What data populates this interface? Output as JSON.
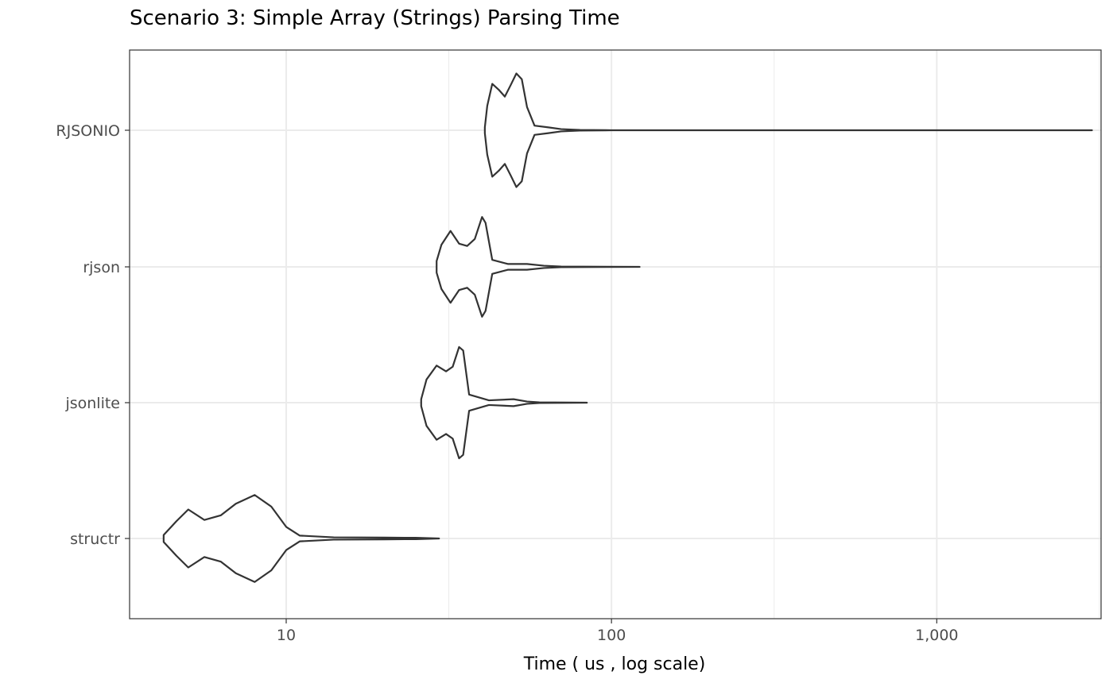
{
  "chart_data": {
    "type": "violin",
    "title": "Scenario 3: Simple Array (Strings) Parsing Time",
    "xlabel": "Time ( us , log scale)",
    "ylabel": "",
    "x_scale": "log10",
    "xlim": [
      3.3,
      3200
    ],
    "x_ticks": [
      10,
      100,
      1000
    ],
    "x_tick_labels": [
      "10",
      "100",
      "1,000"
    ],
    "grid": true,
    "categories": [
      "RJSONIO",
      "rjson",
      "jsonlite",
      "structr"
    ],
    "series": [
      {
        "category": "RJSONIO",
        "min": 40.8,
        "max": 3000,
        "density_profile": [
          [
            40.8,
            0.05
          ],
          [
            41.5,
            0.42
          ],
          [
            43.0,
            0.8
          ],
          [
            45.0,
            0.7
          ],
          [
            47.0,
            0.58
          ],
          [
            49.0,
            0.78
          ],
          [
            51.0,
            0.98
          ],
          [
            53.0,
            0.88
          ],
          [
            55.0,
            0.4
          ],
          [
            58.0,
            0.08
          ],
          [
            64.0,
            0.05
          ],
          [
            70.0,
            0.02
          ],
          [
            80.0,
            0.005
          ],
          [
            100.0,
            0.001
          ],
          [
            3000.0,
            0.0005
          ]
        ]
      },
      {
        "category": "rjson",
        "min": 29.0,
        "max": 122,
        "density_profile": [
          [
            29.0,
            0.1
          ],
          [
            30.0,
            0.38
          ],
          [
            32.0,
            0.62
          ],
          [
            34.0,
            0.4
          ],
          [
            36.0,
            0.36
          ],
          [
            38.0,
            0.48
          ],
          [
            40.0,
            0.86
          ],
          [
            41.0,
            0.76
          ],
          [
            43.0,
            0.12
          ],
          [
            48.0,
            0.05
          ],
          [
            55.0,
            0.05
          ],
          [
            62.0,
            0.02
          ],
          [
            70.0,
            0.005
          ],
          [
            122.0,
            0.001
          ]
        ]
      },
      {
        "category": "jsonlite",
        "min": 26.0,
        "max": 84,
        "density_profile": [
          [
            26.0,
            0.06
          ],
          [
            27.0,
            0.4
          ],
          [
            29.0,
            0.64
          ],
          [
            31.0,
            0.54
          ],
          [
            32.5,
            0.62
          ],
          [
            34.0,
            0.96
          ],
          [
            35.0,
            0.9
          ],
          [
            36.5,
            0.14
          ],
          [
            42.0,
            0.04
          ],
          [
            50.0,
            0.06
          ],
          [
            55.0,
            0.02
          ],
          [
            60.0,
            0.005
          ],
          [
            84.0,
            0.001
          ]
        ]
      },
      {
        "category": "structr",
        "min": 4.2,
        "max": 29.5,
        "density_profile": [
          [
            4.2,
            0.06
          ],
          [
            4.6,
            0.3
          ],
          [
            5.0,
            0.5
          ],
          [
            5.6,
            0.32
          ],
          [
            6.3,
            0.4
          ],
          [
            7.0,
            0.6
          ],
          [
            8.0,
            0.75
          ],
          [
            9.0,
            0.55
          ],
          [
            10.0,
            0.2
          ],
          [
            11.0,
            0.05
          ],
          [
            14.0,
            0.02
          ],
          [
            20.0,
            0.015
          ],
          [
            25.0,
            0.012
          ],
          [
            29.5,
            0.001
          ]
        ]
      }
    ]
  },
  "colors": {
    "violin_stroke": "#333333",
    "grid": "#ebebeb",
    "panel_border": "#333333",
    "tick_label": "#4d4d4d",
    "axis_title": "#000000"
  }
}
